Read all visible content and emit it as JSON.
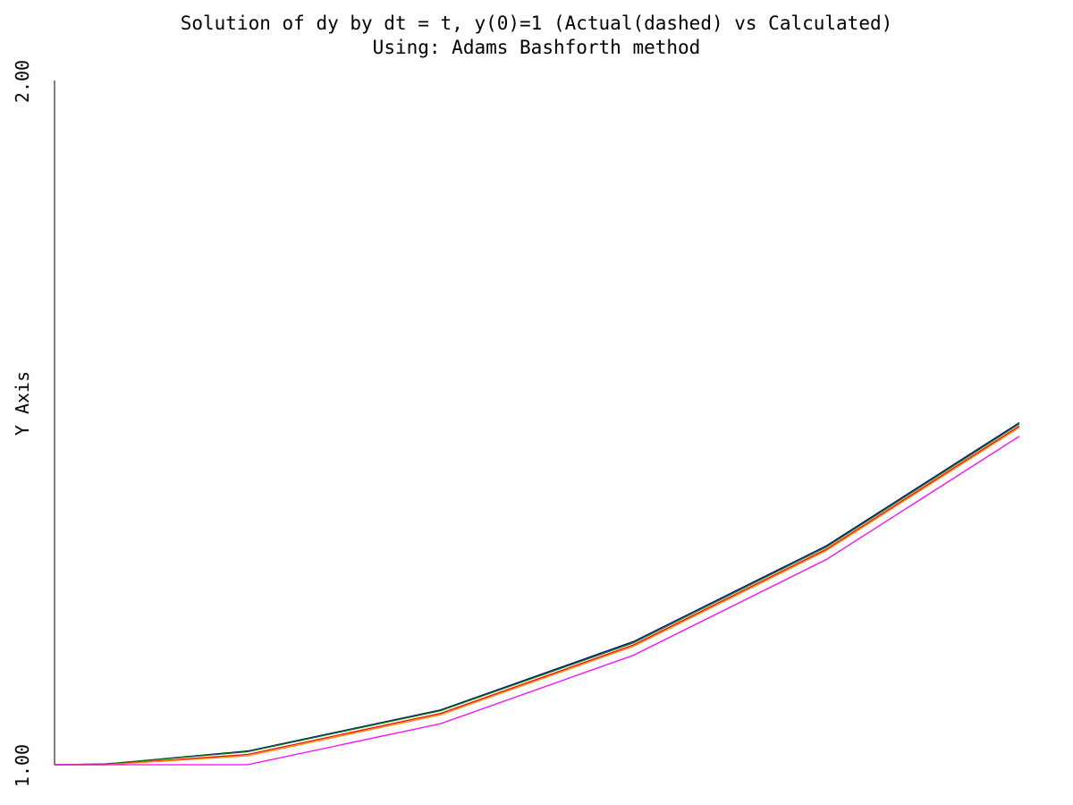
{
  "chart_data": {
    "type": "line",
    "title": "Solution of dy by dt = t, y(0)=1 (Actual(dashed) vs Calculated)",
    "subtitle": "Using: Adams Bashforth method",
    "xlabel": "",
    "ylabel": "Y Axis",
    "ylim": [
      1.0,
      2.0
    ],
    "xlim": [
      0,
      1
    ],
    "y_ticks": [
      "1.00",
      "2.00"
    ],
    "grid": false,
    "series": [
      {
        "color": "#00008b",
        "x": [
          0,
          0.0526,
          0.2,
          0.4,
          0.6,
          0.8,
          1.0
        ],
        "y": [
          1.0,
          1.001,
          1.02,
          1.08,
          1.18,
          1.32,
          1.5
        ]
      },
      {
        "color": "#008000",
        "x": [
          0,
          0.0526,
          0.2,
          0.4,
          0.6,
          0.8,
          1.0
        ],
        "y": [
          1.0,
          1.001,
          1.019,
          1.079,
          1.178,
          1.318,
          1.498
        ]
      },
      {
        "color": "#ff0000",
        "x": [
          0,
          0.0526,
          0.2,
          0.4,
          0.6,
          0.8,
          1.0
        ],
        "y": [
          1.0,
          1.0,
          1.015,
          1.075,
          1.175,
          1.315,
          1.495
        ]
      },
      {
        "color": "#ff8c00",
        "x": [
          0,
          0.0526,
          0.2,
          0.4,
          0.6,
          0.8,
          1.0
        ],
        "y": [
          1.0,
          1.0,
          1.013,
          1.073,
          1.173,
          1.313,
          1.493
        ]
      },
      {
        "color": "#ff00ff",
        "x": [
          0,
          0.2,
          0.4,
          0.6,
          0.8,
          1.0
        ],
        "y": [
          1.0,
          1.0,
          1.06,
          1.16,
          1.3,
          1.48
        ]
      }
    ]
  }
}
